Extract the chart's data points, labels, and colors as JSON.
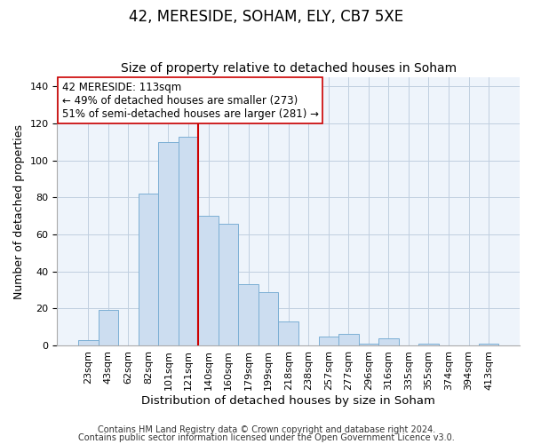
{
  "title": "42, MERESIDE, SOHAM, ELY, CB7 5XE",
  "subtitle": "Size of property relative to detached houses in Soham",
  "xlabel": "Distribution of detached houses by size in Soham",
  "ylabel": "Number of detached properties",
  "bar_labels": [
    "23sqm",
    "43sqm",
    "62sqm",
    "82sqm",
    "101sqm",
    "121sqm",
    "140sqm",
    "160sqm",
    "179sqm",
    "199sqm",
    "218sqm",
    "238sqm",
    "257sqm",
    "277sqm",
    "296sqm",
    "316sqm",
    "335sqm",
    "355sqm",
    "374sqm",
    "394sqm",
    "413sqm"
  ],
  "bar_heights": [
    3,
    19,
    0,
    82,
    110,
    113,
    70,
    66,
    33,
    29,
    13,
    0,
    5,
    6,
    1,
    4,
    0,
    1,
    0,
    0,
    1
  ],
  "bar_color": "#ccddf0",
  "bar_edge_color": "#7bafd4",
  "vline_x": 5.5,
  "vline_color": "#cc0000",
  "annotation_text": "42 MERESIDE: 113sqm\n← 49% of detached houses are smaller (273)\n51% of semi-detached houses are larger (281) →",
  "annotation_box_facecolor": "#ffffff",
  "annotation_box_edgecolor": "#cc0000",
  "ylim": [
    0,
    145
  ],
  "yticks": [
    0,
    20,
    40,
    60,
    80,
    100,
    120,
    140
  ],
  "footer_line1": "Contains HM Land Registry data © Crown copyright and database right 2024.",
  "footer_line2": "Contains public sector information licensed under the Open Government Licence v3.0.",
  "title_fontsize": 12,
  "subtitle_fontsize": 10,
  "xlabel_fontsize": 9.5,
  "ylabel_fontsize": 9,
  "tick_fontsize": 8,
  "footer_fontsize": 7,
  "annotation_fontsize": 8.5
}
